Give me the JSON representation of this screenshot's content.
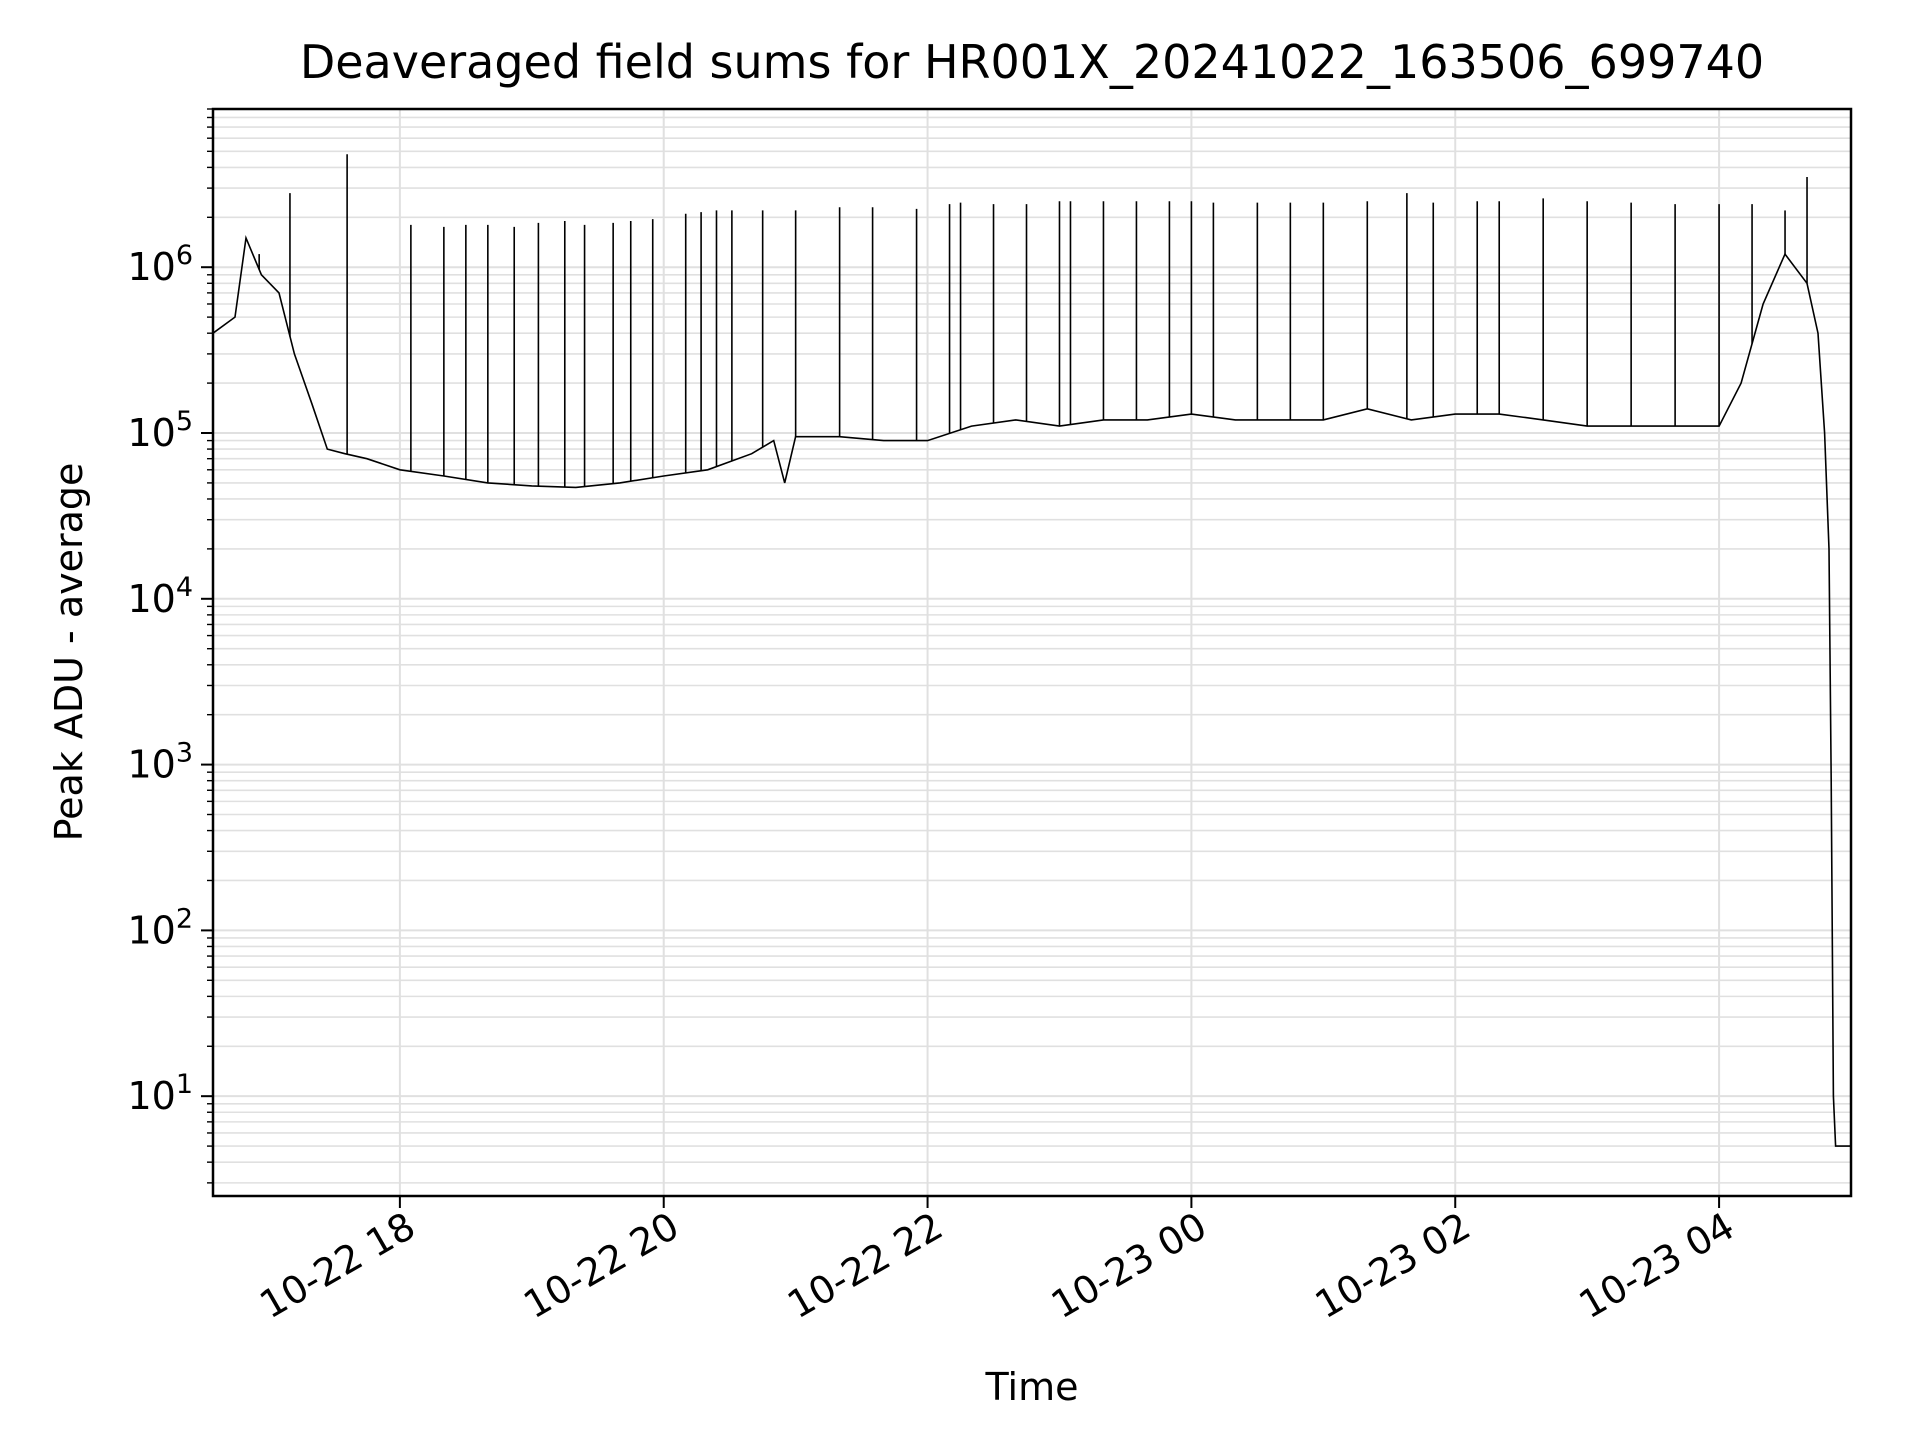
{
  "chart_data": {
    "type": "line",
    "title": "Deaveraged field sums for HR001X_20241022_163506_699740",
    "xlabel": "Time",
    "ylabel": "Peak ADU - average",
    "yscale": "log",
    "xlim": [
      "2024-10-22 16:35",
      "2024-10-23 05:00"
    ],
    "ylim": [
      2.5,
      9000000
    ],
    "x_ticks": [
      {
        "time": "2024-10-22 18:00",
        "label": "10-22 18"
      },
      {
        "time": "2024-10-22 20:00",
        "label": "10-22 20"
      },
      {
        "time": "2024-10-22 22:00",
        "label": "10-22 22"
      },
      {
        "time": "2024-10-23 00:00",
        "label": "10-23 00"
      },
      {
        "time": "2024-10-23 02:00",
        "label": "10-23 02"
      },
      {
        "time": "2024-10-23 04:00",
        "label": "10-23 04"
      }
    ],
    "y_ticks": [
      {
        "value": 10,
        "base": "10",
        "exp": "1"
      },
      {
        "value": 100,
        "base": "10",
        "exp": "2"
      },
      {
        "value": 1000,
        "base": "10",
        "exp": "3"
      },
      {
        "value": 10000,
        "base": "10",
        "exp": "4"
      },
      {
        "value": 100000,
        "base": "10",
        "exp": "5"
      },
      {
        "value": 1000000,
        "base": "10",
        "exp": "6"
      }
    ],
    "grid": "major and minor",
    "color": "#000000",
    "grid_color": "#e0e0e0",
    "series": [
      {
        "x": [
          "2024-10-22 16:35",
          "2024-10-22 16:45",
          "2024-10-22 16:50",
          "2024-10-22 16:57",
          "2024-10-22 17:05",
          "2024-10-22 17:12",
          "2024-10-22 17:20",
          "2024-10-22 17:27",
          "2024-10-22 17:35",
          "2024-10-22 17:45",
          "2024-10-22 18:00",
          "2024-10-22 18:20",
          "2024-10-22 18:40",
          "2024-10-22 19:00",
          "2024-10-22 19:20",
          "2024-10-22 19:40",
          "2024-10-22 20:00",
          "2024-10-22 20:20",
          "2024-10-22 20:40",
          "2024-10-22 20:50",
          "2024-10-22 20:55",
          "2024-10-22 21:00",
          "2024-10-22 21:20",
          "2024-10-22 21:40",
          "2024-10-22 22:00",
          "2024-10-22 22:20",
          "2024-10-22 22:40",
          "2024-10-22 23:00",
          "2024-10-22 23:20",
          "2024-10-22 23:40",
          "2024-10-23 00:00",
          "2024-10-23 00:20",
          "2024-10-23 00:40",
          "2024-10-23 01:00",
          "2024-10-23 01:20",
          "2024-10-23 01:40",
          "2024-10-23 02:00",
          "2024-10-23 02:20",
          "2024-10-23 02:40",
          "2024-10-23 03:00",
          "2024-10-23 03:20",
          "2024-10-23 03:40",
          "2024-10-23 04:00",
          "2024-10-23 04:10",
          "2024-10-23 04:20",
          "2024-10-23 04:30",
          "2024-10-23 04:40",
          "2024-10-23 04:45",
          "2024-10-23 04:48",
          "2024-10-23 04:50",
          "2024-10-23 04:51",
          "2024-10-23 04:52",
          "2024-10-23 04:53",
          "2024-10-23 05:00"
        ],
        "y": [
          400000,
          500000,
          1500000,
          900000,
          700000,
          300000,
          150000,
          80000,
          75000,
          70000,
          60000,
          55000,
          50000,
          48000,
          47000,
          50000,
          55000,
          60000,
          75000,
          90000,
          50000,
          95000,
          95000,
          90000,
          90000,
          110000,
          120000,
          110000,
          120000,
          120000,
          130000,
          120000,
          120000,
          120000,
          140000,
          120000,
          130000,
          130000,
          120000,
          110000,
          110000,
          110000,
          110000,
          200000,
          600000,
          1200000,
          800000,
          400000,
          100000,
          20000,
          800,
          10,
          5,
          5
        ]
      }
    ],
    "spikes": {
      "x": [
        "2024-10-22 16:56",
        "2024-10-22 17:10",
        "2024-10-22 17:36",
        "2024-10-22 18:05",
        "2024-10-22 18:20",
        "2024-10-22 18:30",
        "2024-10-22 18:40",
        "2024-10-22 18:52",
        "2024-10-22 19:03",
        "2024-10-22 19:15",
        "2024-10-22 19:24",
        "2024-10-22 19:37",
        "2024-10-22 19:45",
        "2024-10-22 19:55",
        "2024-10-22 20:10",
        "2024-10-22 20:17",
        "2024-10-22 20:24",
        "2024-10-22 20:31",
        "2024-10-22 20:45",
        "2024-10-22 21:00",
        "2024-10-22 21:20",
        "2024-10-22 21:35",
        "2024-10-22 21:55",
        "2024-10-22 22:10",
        "2024-10-22 22:15",
        "2024-10-22 22:30",
        "2024-10-22 22:45",
        "2024-10-22 23:00",
        "2024-10-22 23:05",
        "2024-10-22 23:20",
        "2024-10-22 23:35",
        "2024-10-22 23:50",
        "2024-10-23 00:00",
        "2024-10-23 00:10",
        "2024-10-23 00:30",
        "2024-10-23 00:45",
        "2024-10-23 01:00",
        "2024-10-23 01:20",
        "2024-10-23 01:38",
        "2024-10-23 01:50",
        "2024-10-23 02:10",
        "2024-10-23 02:20",
        "2024-10-23 02:40",
        "2024-10-23 03:00",
        "2024-10-23 03:20",
        "2024-10-23 03:40",
        "2024-10-23 04:00",
        "2024-10-23 04:15",
        "2024-10-23 04:30",
        "2024-10-23 04:40"
      ],
      "y": [
        1200000,
        2800000,
        4800000,
        1800000,
        1750000,
        1800000,
        1800000,
        1750000,
        1850000,
        1900000,
        1800000,
        1850000,
        1900000,
        1950000,
        2100000,
        2150000,
        2200000,
        2200000,
        2200000,
        2200000,
        2300000,
        2300000,
        2250000,
        2400000,
        2450000,
        2400000,
        2400000,
        2500000,
        2500000,
        2500000,
        2500000,
        2500000,
        2500000,
        2450000,
        2450000,
        2450000,
        2450000,
        2500000,
        2800000,
        2450000,
        2500000,
        2500000,
        2600000,
        2500000,
        2450000,
        2400000,
        2400000,
        2400000,
        2200000,
        3500000
      ]
    }
  }
}
